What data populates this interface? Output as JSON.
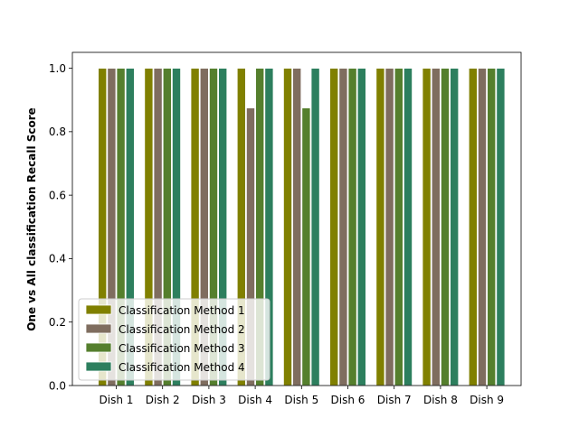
{
  "chart_data": {
    "type": "bar",
    "categories": [
      "Dish 1",
      "Dish 2",
      "Dish 3",
      "Dish 4",
      "Dish 5",
      "Dish 6",
      "Dish 7",
      "Dish 8",
      "Dish 9"
    ],
    "series": [
      {
        "name": "Classification Method 1",
        "color": "#808000",
        "values": [
          1.0,
          1.0,
          1.0,
          1.0,
          1.0,
          1.0,
          1.0,
          1.0,
          1.0
        ]
      },
      {
        "name": "Classification Method 2",
        "color": "#7f6d5f",
        "values": [
          1.0,
          1.0,
          1.0,
          0.875,
          1.0,
          1.0,
          1.0,
          1.0,
          1.0
        ]
      },
      {
        "name": "Classification Method 3",
        "color": "#557f2d",
        "values": [
          1.0,
          1.0,
          1.0,
          1.0,
          0.875,
          1.0,
          1.0,
          1.0,
          1.0
        ]
      },
      {
        "name": "Classification Method 4",
        "color": "#2d7f5e",
        "values": [
          1.0,
          1.0,
          1.0,
          1.0,
          1.0,
          1.0,
          1.0,
          1.0,
          1.0
        ]
      }
    ],
    "title": "",
    "xlabel": "",
    "ylabel": "One vs All classification Recall Score",
    "ylim": [
      0,
      1.05
    ],
    "yticks": [
      "0.0",
      "0.2",
      "0.4",
      "0.6",
      "0.8",
      "1.0"
    ],
    "grid": false,
    "legend_position": "lower-left"
  }
}
